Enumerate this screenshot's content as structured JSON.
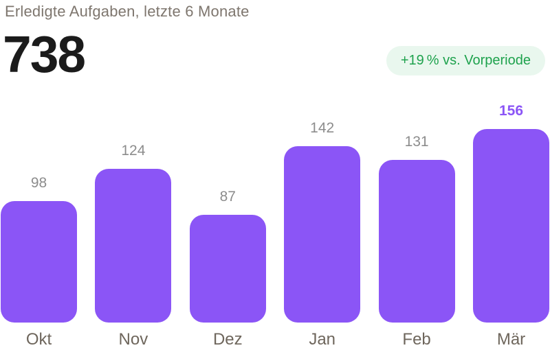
{
  "page": {
    "background": "#FFFFFF"
  },
  "header": {
    "title": "Erledigte Aufgaben, letzte 6 Monate",
    "total_value": "738",
    "badge_label": "+19 % vs. Vorperiode"
  },
  "colors": {
    "background": "#FFFFFF",
    "title": "#7E766E",
    "total": "#1B1B1B",
    "badge_text": "#1EA24D",
    "badge_bg": "#E9F7EE",
    "bar": "#8B55F6",
    "value_label": "#8C8C8C",
    "value_label_highlight": "#8B55F6",
    "month_label": "#6E665C"
  },
  "chart_data": {
    "type": "bar",
    "title": "Erledigte Aufgaben, letzte 6 Monate",
    "categories": [
      "Okt",
      "Nov",
      "Dez",
      "Jan",
      "Feb",
      "Mär"
    ],
    "values": [
      98,
      124,
      87,
      142,
      131,
      156
    ],
    "total": 738,
    "annotations": [
      "+19 % vs. Vorperiode"
    ],
    "highlight_index": 5,
    "ylim": [
      0,
      156
    ],
    "grid": false,
    "legend": false,
    "value_labels_shown": true,
    "bar_color": "#8B55F6"
  }
}
